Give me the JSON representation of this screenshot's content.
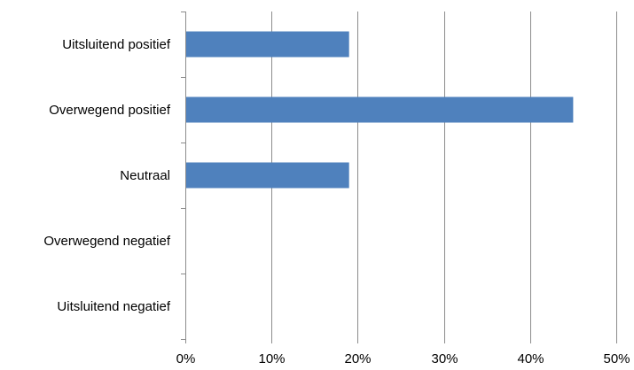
{
  "chart_data": {
    "type": "bar",
    "orientation": "horizontal",
    "categories": [
      "Uitsluitend positief",
      "Overwegend positief",
      "Neutraal",
      "Overwegend negatief",
      "Uitsluitend negatief"
    ],
    "values": [
      19,
      45,
      19,
      0,
      0
    ],
    "xlim": [
      0,
      50
    ],
    "xticks": [
      0,
      10,
      20,
      30,
      40,
      50
    ],
    "xtick_labels": [
      "0%",
      "10%",
      "20%",
      "30%",
      "40%",
      "50%"
    ],
    "grid": "vertical major gridlines",
    "legend": "none",
    "bar_color": "#4f81bd"
  }
}
